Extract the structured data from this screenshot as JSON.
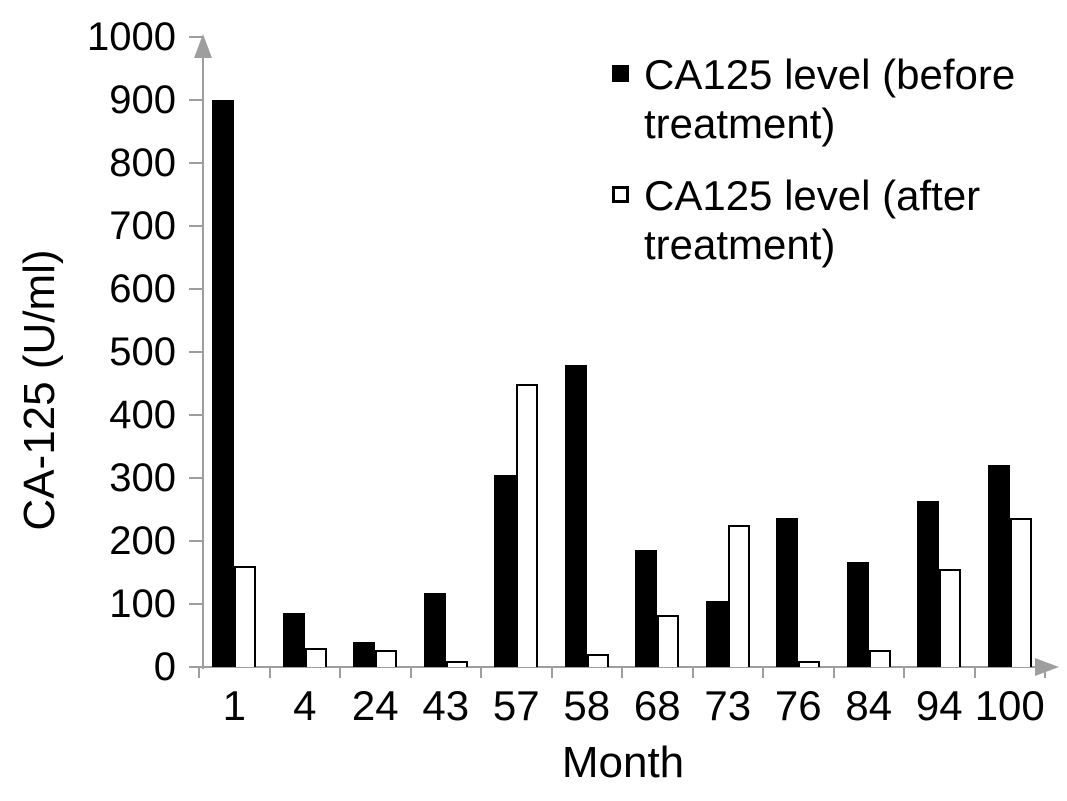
{
  "chart_data": {
    "type": "bar",
    "title": "",
    "xlabel": "Month",
    "ylabel": "CA-125 (U/ml)",
    "ylim": [
      0,
      1000
    ],
    "yticks": [
      0,
      100,
      200,
      300,
      400,
      500,
      600,
      700,
      800,
      900,
      1000
    ],
    "categories": [
      "1",
      "4",
      "24",
      "43",
      "57",
      "58",
      "68",
      "73",
      "76",
      "84",
      "94",
      "100"
    ],
    "series": [
      {
        "name": "CA125 level (before treatment)",
        "legend_label": "CA125 level (before\ntreatment)",
        "fill_color": "#000000",
        "border_color": "#000000",
        "values": [
          900,
          85,
          40,
          118,
          305,
          480,
          186,
          104,
          237,
          166,
          263,
          320
        ]
      },
      {
        "name": "CA125 level (after treatment)",
        "legend_label": "CA125 level (after\ntreatment)",
        "fill_color": "#ffffff",
        "border_color": "#000000",
        "values": [
          160,
          30,
          27,
          10,
          450,
          20,
          83,
          226,
          10,
          27,
          155,
          236
        ]
      }
    ],
    "legend_position": "top-right",
    "grid": false,
    "axis_color": "#9e9e9e",
    "text_color": "#000000",
    "background_color": "#ffffff"
  }
}
